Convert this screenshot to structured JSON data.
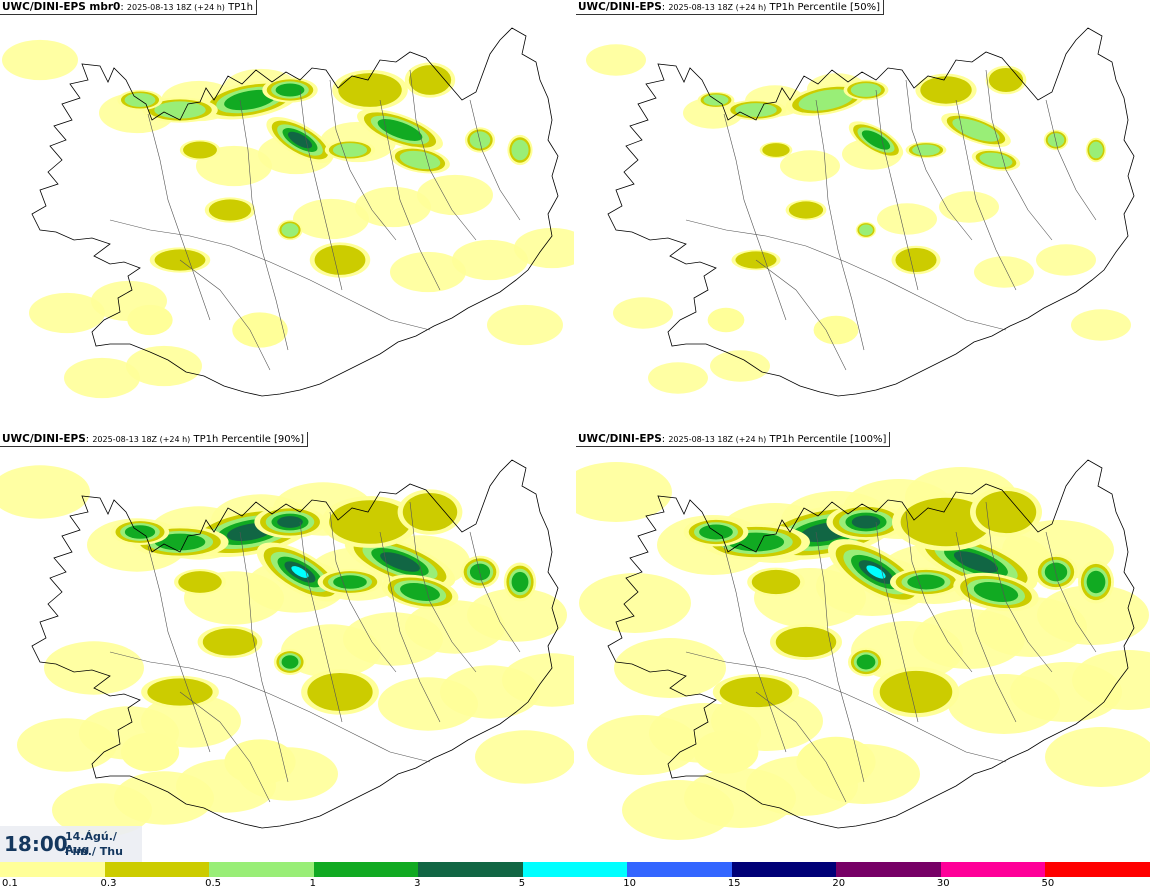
{
  "panels": [
    {
      "id": "mbr0",
      "model": "UWC/DINI-EPS mbr0",
      "run": "2025-08-13 18Z (+24 h)",
      "field": "TP1h",
      "intensity": 0.55
    },
    {
      "id": "p50",
      "model": "UWC/DINI-EPS",
      "run": "2025-08-13 18Z (+24 h)",
      "field": "TP1h Percentile [50%]",
      "intensity": 0.35
    },
    {
      "id": "p90",
      "model": "UWC/DINI-EPS",
      "run": "2025-08-13 18Z (+24 h)",
      "field": "TP1h Percentile [90%]",
      "intensity": 0.85
    },
    {
      "id": "p100",
      "model": "UWC/DINI-EPS",
      "run": "2025-08-13 18Z (+24 h)",
      "field": "TP1h Percentile [100%]",
      "intensity": 1.0
    }
  ],
  "time": {
    "hour": "18:00",
    "date": "14.Ágú./ Aug",
    "day": "Fim./ Thu"
  },
  "colorbar": {
    "labels": [
      "0.1",
      "0.3",
      "0.5",
      "1",
      "3",
      "5",
      "10",
      "15",
      "20",
      "30",
      "50"
    ],
    "colors": [
      "#ffff99",
      "#cccc00",
      "#99ee77",
      "#11aa22",
      "#116644",
      "#00ffff",
      "#3366ff",
      "#000077",
      "#770066",
      "#ff0099",
      "#ff0000"
    ]
  },
  "colors": {
    "coast": "#000000",
    "road": "#555555",
    "light_yellow": "#ffff99",
    "olive": "#cccc00",
    "light_green": "#99ee77",
    "green": "#11aa22",
    "dark_green": "#116644",
    "cyan": "#00ffff"
  }
}
